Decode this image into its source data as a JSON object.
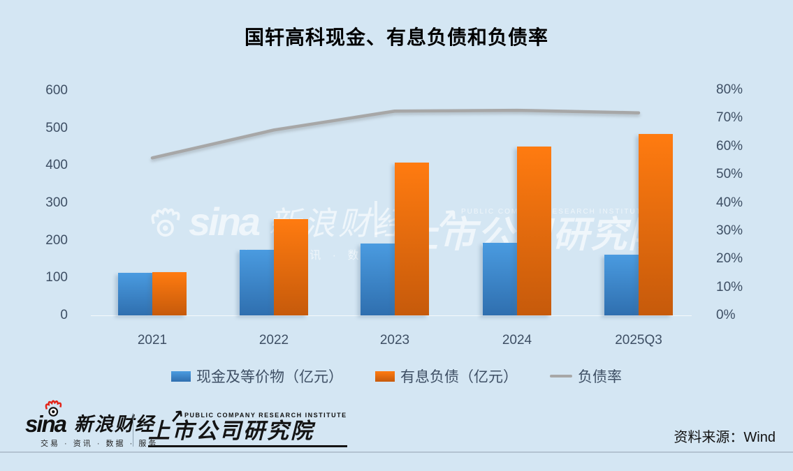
{
  "title": "国轩高科现金、有息负债和负债率",
  "chart_data": {
    "type": "bar",
    "title": "国轩高科现金、有息负债和负债率",
    "categories": [
      "2021",
      "2022",
      "2023",
      "2024",
      "2025Q3"
    ],
    "series": [
      {
        "name": "现金及等价物（亿元）",
        "type": "bar",
        "axis": "left",
        "values": [
          113,
          176,
          191,
          193,
          163
        ],
        "color": "#3D86CC"
      },
      {
        "name": "有息负债（亿元）",
        "type": "bar",
        "axis": "left",
        "values": [
          115,
          258,
          409,
          451,
          485
        ],
        "color": "#E86A0E"
      },
      {
        "name": "负债率",
        "type": "line",
        "axis": "right",
        "values": [
          55.9,
          65.8,
          72.5,
          72.8,
          71.9
        ],
        "color": "#A7A7A7"
      }
    ],
    "left_axis": {
      "min": 0,
      "max": 600,
      "ticks": [
        600,
        500,
        400,
        300,
        200,
        100,
        0
      ]
    },
    "right_axis": {
      "min": 0,
      "max": 80,
      "ticks": [
        "80%",
        "70%",
        "60%",
        "50%",
        "40%",
        "30%",
        "20%",
        "10%",
        "0%"
      ]
    },
    "grid": false,
    "legend_position": "bottom",
    "legend": [
      {
        "label": "现金及等价物（亿元）",
        "swatch": "blue-square"
      },
      {
        "label": "有息负债（亿元）",
        "swatch": "orange-square"
      },
      {
        "label": "负债率",
        "swatch": "gray-line"
      }
    ]
  },
  "watermark": {
    "sina_word": "sina",
    "sina_cn": "新浪财经",
    "tagline": "交易 · 资讯 · 数据 · 服务",
    "pcri_en": "PUBLIC COMPANY RESEARCH INSTITUTE",
    "pcri_cn": "上市公司研究院",
    "arrow": "↗"
  },
  "footer": {
    "sina_word": "sina",
    "sina_cn": "新浪财经",
    "sina_tagline": "交易 · 资讯 · 数据 · 服务",
    "pcri_en": "PUBLIC COMPANY RESEARCH INSTITUTE",
    "pcri_cn": "上市公司研究院",
    "pcri_arrow": "↗",
    "source": "资料来源：Wind"
  },
  "colors": {
    "background": "#D4E6F3",
    "axis_text": "#3E4F64",
    "bar_blue_top": "#4A9BE0",
    "bar_blue_bottom": "#2F6FAF",
    "bar_orange_top": "#FF7B10",
    "bar_orange_bottom": "#C65A0B",
    "ratio_line": "#A7A7A7",
    "sina_flame_red": "#E22418"
  }
}
